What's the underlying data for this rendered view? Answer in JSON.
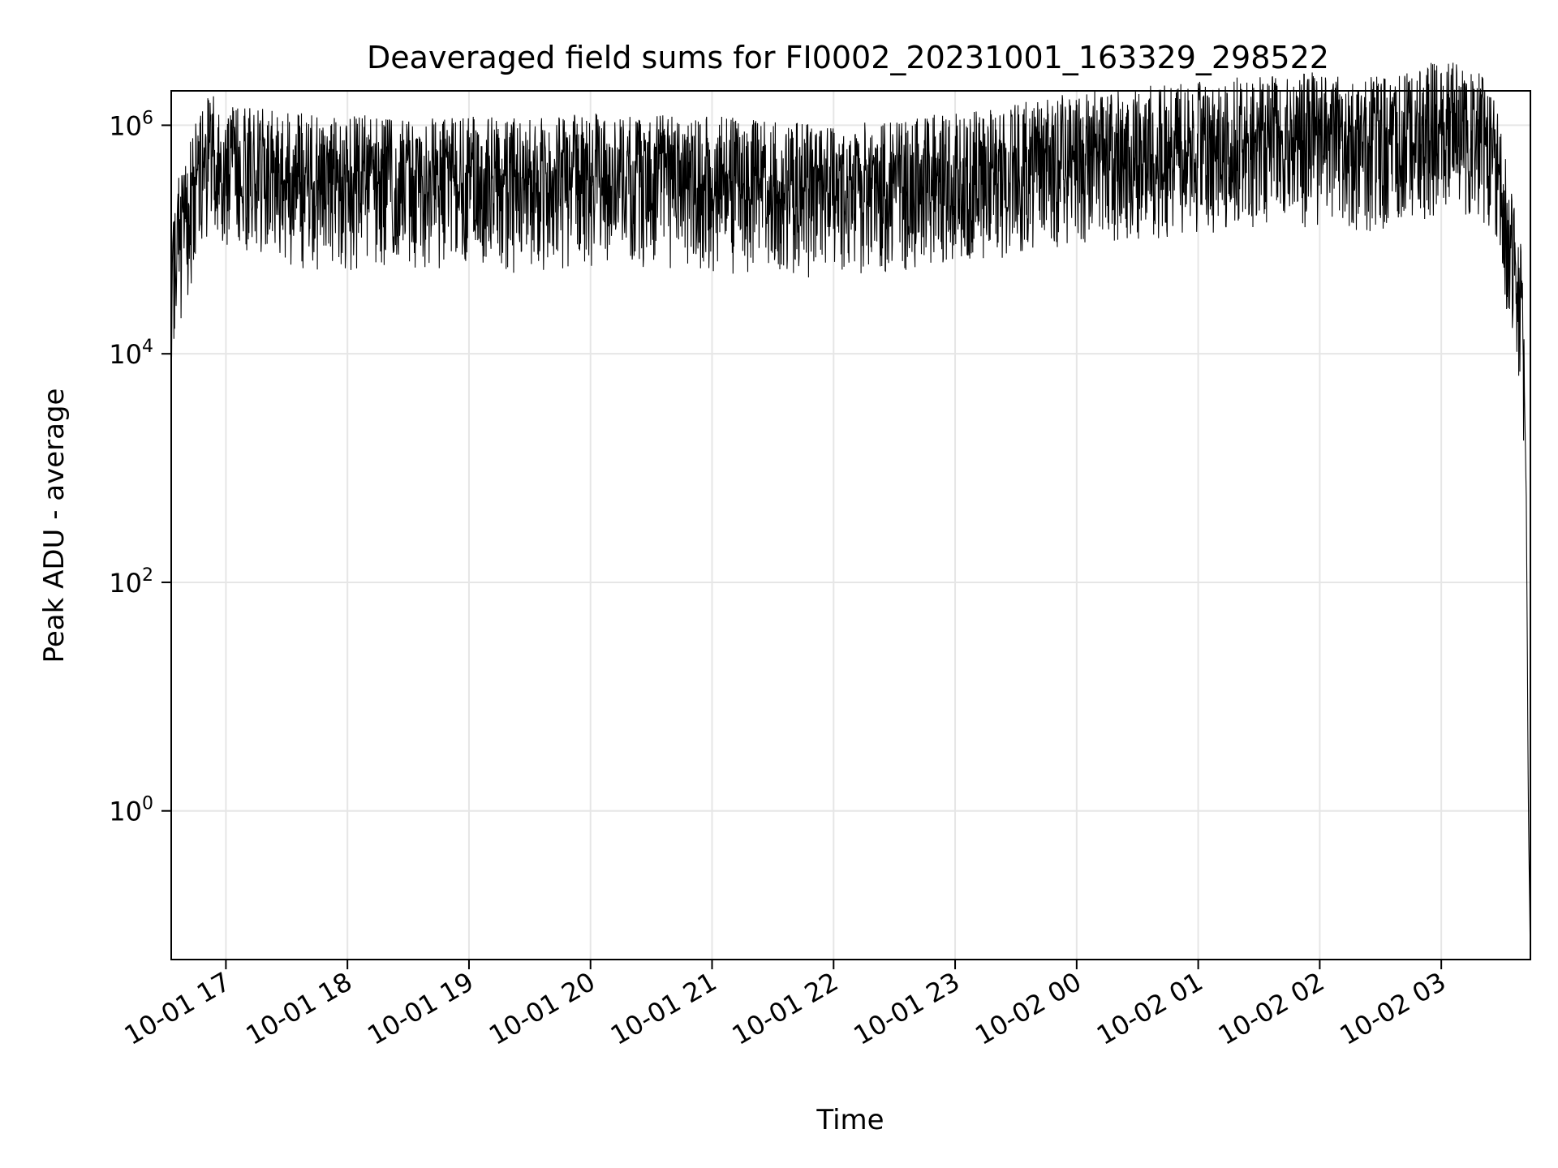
{
  "chart_data": {
    "type": "line",
    "title": "Deaveraged field sums for FI0002_20231001_163329_298522",
    "xlabel": "Time",
    "ylabel": "Peak ADU - average",
    "yscale": "log",
    "grid": true,
    "legend": "none",
    "line_color": "#000000",
    "grid_color": "#e6e6e6",
    "xlim": [
      "2023-10-01 16:33",
      "2023-10-02 03:44"
    ],
    "ylim": [
      0.05,
      2000000
    ],
    "x_ticks": [
      {
        "value": "2023-10-01 17:00",
        "label": "10-01 17"
      },
      {
        "value": "2023-10-01 18:00",
        "label": "10-01 18"
      },
      {
        "value": "2023-10-01 19:00",
        "label": "10-01 19"
      },
      {
        "value": "2023-10-01 20:00",
        "label": "10-01 20"
      },
      {
        "value": "2023-10-01 21:00",
        "label": "10-01 21"
      },
      {
        "value": "2023-10-01 22:00",
        "label": "10-01 22"
      },
      {
        "value": "2023-10-01 23:00",
        "label": "10-01 23"
      },
      {
        "value": "2023-10-02 00:00",
        "label": "10-02 00"
      },
      {
        "value": "2023-10-02 01:00",
        "label": "10-02 01"
      },
      {
        "value": "2023-10-02 02:00",
        "label": "10-02 02"
      },
      {
        "value": "2023-10-02 03:00",
        "label": "10-02 03"
      }
    ],
    "y_ticks": [
      {
        "value": 1,
        "base": "10",
        "exp": "0"
      },
      {
        "value": 100,
        "base": "10",
        "exp": "2"
      },
      {
        "value": 10000,
        "base": "10",
        "exp": "4"
      },
      {
        "value": 1000000,
        "base": "10",
        "exp": "6"
      }
    ],
    "series": [
      {
        "x": [
          "2023-10-01 16:33",
          "2023-10-01 16:35",
          "2023-10-01 16:40",
          "2023-10-01 16:45",
          "2023-10-01 16:50",
          "2023-10-01 16:55",
          "2023-10-01 17:00",
          "2023-10-01 17:10",
          "2023-10-01 17:20",
          "2023-10-01 17:30",
          "2023-10-01 17:40",
          "2023-10-01 18:00",
          "2023-10-01 18:20",
          "2023-10-01 18:40",
          "2023-10-01 19:00",
          "2023-10-01 19:20",
          "2023-10-01 19:40",
          "2023-10-01 20:00",
          "2023-10-01 20:20",
          "2023-10-01 20:40",
          "2023-10-01 21:00",
          "2023-10-01 21:20",
          "2023-10-01 21:40",
          "2023-10-01 22:00",
          "2023-10-01 22:20",
          "2023-10-01 22:40",
          "2023-10-01 23:00",
          "2023-10-01 23:20",
          "2023-10-01 23:40",
          "2023-10-02 00:00",
          "2023-10-02 00:20",
          "2023-10-02 00:40",
          "2023-10-02 01:00",
          "2023-10-02 01:20",
          "2023-10-02 01:40",
          "2023-10-02 02:00",
          "2023-10-02 02:20",
          "2023-10-02 02:40",
          "2023-10-02 03:00",
          "2023-10-02 03:10",
          "2023-10-02 03:20",
          "2023-10-02 03:25",
          "2023-10-02 03:30",
          "2023-10-02 03:35",
          "2023-10-02 03:38",
          "2023-10-02 03:40",
          "2023-10-02 03:41",
          "2023-10-02 03:42",
          "2023-10-02 03:43",
          "2023-10-02 03:44"
        ],
        "y": [
          20000,
          80000,
          150000,
          300000,
          500000,
          600000,
          500000,
          450000,
          400000,
          380000,
          360000,
          350000,
          350000,
          340000,
          340000,
          340000,
          350000,
          360000,
          370000,
          360000,
          350000,
          320000,
          300000,
          310000,
          330000,
          350000,
          380000,
          420000,
          480000,
          550000,
          600000,
          650000,
          700000,
          760000,
          800000,
          850000,
          750000,
          800000,
          1100000,
          1200000,
          800000,
          600000,
          250000,
          80000,
          40000,
          20000,
          5000,
          500,
          1,
          0.05
        ],
        "noise_range": [
          0.15,
          3.5
        ]
      }
    ]
  }
}
